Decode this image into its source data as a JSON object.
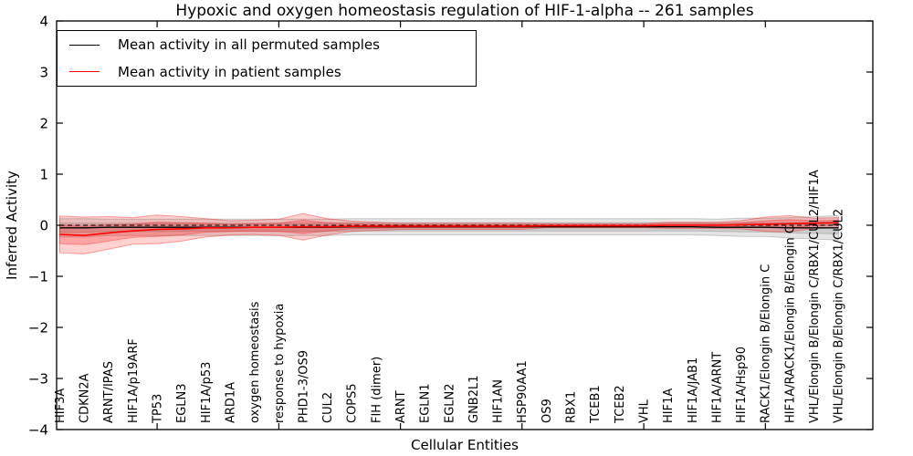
{
  "chart_data": {
    "type": "line",
    "title": "Hypoxic and oxygen homeostasis regulation of HIF-1-alpha -- 261 samples",
    "xlabel": "Cellular Entities",
    "ylabel": "Inferred Activity",
    "ylim": [
      -4,
      4
    ],
    "yticks": [
      4,
      3,
      2,
      1,
      0,
      -1,
      -2,
      -3,
      -4
    ],
    "x_major_tick_indices": [
      4,
      9,
      14,
      19,
      24,
      29
    ],
    "zero_reference_line": 0,
    "grid": false,
    "legend_position": "upper left",
    "background_color": "#ffffff",
    "categories": [
      "HIF3A",
      "CDKN2A",
      "ARNT/IPAS",
      "HIF1A/p19ARF",
      "TP53",
      "EGLN3",
      "HIF1A/p53",
      "ARD1A",
      "oxygen homeostasis",
      "response to hypoxia",
      "PHD1-3/OS9",
      "CUL2",
      "COPS5",
      "FIH (dimer)",
      "ARNT",
      "EGLN1",
      "EGLN2",
      "GNB2L1",
      "HIF1AN",
      "HSP90AA1",
      "OS9",
      "RBX1",
      "TCEB1",
      "TCEB2",
      "VHL",
      "HIF1A",
      "HIF1A/JAB1",
      "HIF1A/ARNT",
      "HIF1A/Hsp90",
      "RACK1/Elongin B/Elongin C",
      "HIF1A/RACK1/Elongin B/Elongin C",
      "VHL/Elongin B/Elongin C/RBX1/CUL2/HIF1A",
      "VHL/Elongin B/Elongin C/RBX1/CUL2"
    ],
    "series": [
      {
        "name": "Mean activity in all permuted samples",
        "color": "#000000",
        "band_color": "#000000",
        "mean": [
          -0.05,
          -0.05,
          -0.04,
          -0.04,
          -0.04,
          -0.04,
          -0.04,
          -0.04,
          -0.04,
          -0.04,
          -0.04,
          -0.04,
          -0.03,
          -0.03,
          -0.03,
          -0.03,
          -0.03,
          -0.03,
          -0.03,
          -0.03,
          -0.03,
          -0.03,
          -0.03,
          -0.03,
          -0.03,
          -0.03,
          -0.03,
          -0.04,
          -0.04,
          -0.04,
          -0.05,
          -0.05,
          -0.05
        ],
        "sigma": [
          0.09,
          0.09,
          0.08,
          0.08,
          0.08,
          0.08,
          0.08,
          0.08,
          0.08,
          0.08,
          0.08,
          0.08,
          0.08,
          0.08,
          0.08,
          0.08,
          0.08,
          0.08,
          0.08,
          0.08,
          0.08,
          0.08,
          0.08,
          0.08,
          0.08,
          0.08,
          0.08,
          0.08,
          0.09,
          0.09,
          0.1,
          0.11,
          0.12
        ]
      },
      {
        "name": "Mean activity in patient samples",
        "color": "#ff0000",
        "band_color": "#ff0000",
        "mean": [
          -0.18,
          -0.2,
          -0.15,
          -0.11,
          -0.08,
          -0.07,
          -0.05,
          -0.05,
          -0.04,
          -0.04,
          -0.03,
          -0.03,
          -0.02,
          -0.02,
          -0.02,
          -0.02,
          -0.02,
          -0.02,
          -0.02,
          -0.02,
          -0.01,
          -0.01,
          -0.01,
          -0.01,
          -0.01,
          0.0,
          0.0,
          0.0,
          0.01,
          0.02,
          0.03,
          0.04,
          0.05
        ],
        "sigma": [
          0.18,
          0.18,
          0.16,
          0.13,
          0.14,
          0.12,
          0.09,
          0.07,
          0.07,
          0.08,
          0.13,
          0.08,
          0.05,
          0.04,
          0.03,
          0.03,
          0.03,
          0.03,
          0.03,
          0.03,
          0.02,
          0.02,
          0.02,
          0.02,
          0.02,
          0.03,
          0.03,
          0.03,
          0.04,
          0.07,
          0.08,
          0.05,
          0.05
        ]
      }
    ]
  }
}
